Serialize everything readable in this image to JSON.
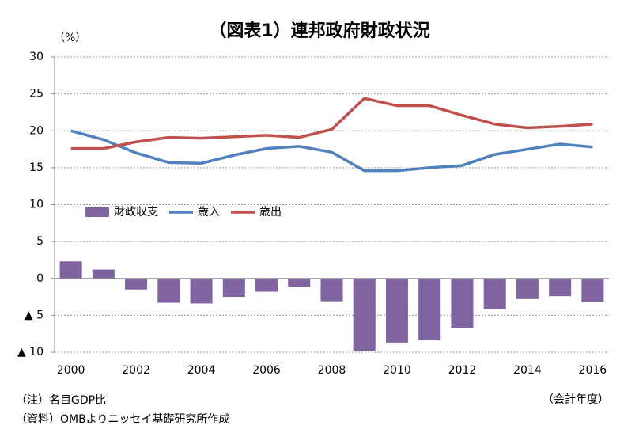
{
  "chart_data": {
    "type": "bar-line",
    "title": "（図表1）連邦政府財政状況",
    "y_unit": "（%）",
    "x_unit": "（会計年度）",
    "notes": [
      "（注）名目GDP比",
      "（資料）OMBよりニッセイ基礎研究所作成"
    ],
    "x": [
      2000,
      2001,
      2002,
      2003,
      2004,
      2005,
      2006,
      2007,
      2008,
      2009,
      2010,
      2011,
      2012,
      2013,
      2014,
      2015,
      2016
    ],
    "xlim": [
      1999.5,
      2016.5
    ],
    "xticks": [
      2000,
      2002,
      2004,
      2006,
      2008,
      2010,
      2012,
      2014,
      2016
    ],
    "ylim": [
      -10,
      30
    ],
    "yticks": [
      30,
      25,
      20,
      15,
      10,
      5,
      0,
      {
        "value": -5,
        "label": "▲ 5"
      },
      {
        "value": -10,
        "label": "▲ 10"
      }
    ],
    "grid": true,
    "legend": "center-left",
    "series": [
      {
        "name": "財政収支",
        "type": "bar",
        "color": "#8064a2",
        "values": [
          2.3,
          1.2,
          -1.5,
          -3.3,
          -3.4,
          -2.5,
          -1.8,
          -1.1,
          -3.1,
          -9.8,
          -8.7,
          -8.4,
          -6.7,
          -4.1,
          -2.8,
          -2.4,
          -3.2
        ]
      },
      {
        "name": "歳入",
        "type": "line",
        "color": "#4f81bd",
        "values": [
          20.0,
          18.8,
          17.0,
          15.7,
          15.6,
          16.7,
          17.6,
          17.9,
          17.1,
          14.6,
          14.6,
          15.0,
          15.3,
          16.8,
          17.5,
          18.2,
          17.8
        ]
      },
      {
        "name": "歳出",
        "type": "line",
        "color": "#c0504d",
        "values": [
          17.6,
          17.6,
          18.5,
          19.1,
          19.0,
          19.2,
          19.4,
          19.1,
          20.2,
          24.4,
          23.4,
          23.4,
          22.1,
          20.9,
          20.4,
          20.6,
          20.9
        ]
      }
    ]
  }
}
